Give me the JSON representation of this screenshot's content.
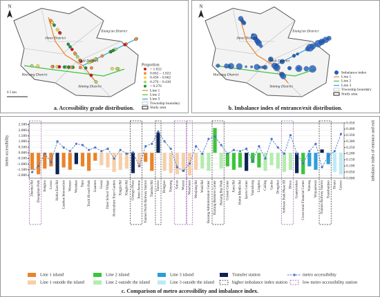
{
  "maps": [
    {
      "caption": "a. Accessibility grade distribution.",
      "north": "N",
      "scale": "0      5 km",
      "districts": [
        "Jimei District",
        "Xiang'an District",
        "Haicang District",
        "Huli District",
        "Siming District"
      ],
      "legend_title": "Proportion",
      "legend": [
        "> 1.022",
        "0.662 – 1.022",
        "0.430 – 0.662",
        "0.276 – 0.430",
        "< 0.276",
        "Line 1",
        "Line 2",
        "Line 3",
        "Township boundary",
        "Study area"
      ]
    },
    {
      "caption": "b. Imbalance index of entrance/exit distribution.",
      "north": "N",
      "districts": [
        "Jimei District",
        "Xiang'an District",
        "Haicang District",
        "Huli District",
        "Siming District"
      ],
      "legend": [
        "Imbalance index",
        "Line 1",
        "Line 2",
        "Line 3",
        "Township boundary",
        "Study area"
      ]
    }
  ],
  "chart_data": {
    "type": "bar_line",
    "caption": "c. Comparison of  metro accessibility and imbalance index.",
    "ylabel": "metro accessibility",
    "y2label": "imbalance index of entrance and exit",
    "categories": [
      "Zhenhai Rd",
      "Zhongshan Park",
      "Jiangtou",
      "Lvcuo",
      "Hubin East Rd",
      "Lianban Intersection",
      "Wenzao",
      "Wenshan",
      "Tapu",
      "Torch Hi-tech Park",
      "Guanren",
      "Gaoqi",
      "Jimei School Village",
      "Horticulture Expo Garden",
      "Xingjin Rd",
      "Xinglin Rd",
      "Chengyi Plaza",
      "Jimei Avenue",
      "Xiamen North Railway Station",
      "Tianshui Rd",
      "Tiancuo",
      "Dongyao",
      "Xinyang",
      "Xin'an",
      "Wucun",
      "Wenchuan",
      "Wenjiang Rd",
      "Wudi Rd",
      "Haicang Administration Center",
      "Haicang Business Center",
      "Haicang Bay Park",
      "Crystal Center",
      "Jiayu Rd",
      "Hubin Middle Rd",
      "Sports Center",
      "Yuanzhong",
      "Lingdou",
      "Cailing",
      "Gaolin",
      "Dongzhai",
      "Software Park Phase III",
      "Bruce",
      "Guanyinshan",
      "Cross-strait Financial Center",
      "Wutong",
      "Wuyuanwan",
      "Xiamen Railway Station",
      "Xiaoshanjiao",
      "Houxi",
      "Caicuo"
    ],
    "bar_groups": [
      {
        "name": "Line 1 island",
        "color": "#e8842a"
      },
      {
        "name": "Line 1 outside the island",
        "color": "#f6cfa8"
      },
      {
        "name": "Line 2 island",
        "color": "#3cc43c"
      },
      {
        "name": "Line 2 outside the island",
        "color": "#b5ecb0"
      },
      {
        "name": "Line 3 island",
        "color": "#2b9fd9"
      },
      {
        "name": "Line 3 outside the island",
        "color": "#bfeaf5"
      },
      {
        "name": "Transfer station",
        "color": "#0d2352"
      }
    ],
    "group_of": [
      0,
      0,
      0,
      0,
      6,
      0,
      0,
      6,
      0,
      0,
      0,
      1,
      1,
      1,
      1,
      1,
      6,
      1,
      0,
      0,
      6,
      1,
      1,
      1,
      1,
      1,
      1,
      3,
      3,
      2,
      3,
      2,
      2,
      2,
      6,
      2,
      2,
      3,
      3,
      3,
      3,
      3,
      6,
      2,
      4,
      4,
      6,
      4,
      5,
      5
    ],
    "series": [
      {
        "name": "metro accessibility bars",
        "axis": "y",
        "values": [
          -1.5,
          -1.9,
          -1.4,
          -1.2,
          -1.9,
          -1.3,
          -1.5,
          -1.0,
          -1.2,
          -1.6,
          -0.7,
          -1.1,
          -1.3,
          -1.7,
          -1.5,
          -1.4,
          -1.8,
          -1.3,
          -0.8,
          -1.6,
          1.8,
          -1.6,
          -1.8,
          -1.9,
          -1.7,
          -2.0,
          -1.5,
          -1.4,
          -1.6,
          2.2,
          -1.4,
          -1.2,
          -1.5,
          -1.3,
          -1.6,
          -0.9,
          -1.3,
          -1.6,
          -1.1,
          -1.4,
          -1.7,
          -1.5,
          -1.8,
          -1.9,
          -1.2,
          -1.5,
          0.3,
          -1.0,
          -1.7,
          -1.9
        ]
      },
      {
        "name": "metro accessibility",
        "axis": "y2",
        "color": "#4a74c9",
        "values": [
          0.05,
          0.1,
          0.2,
          0.13,
          0.3,
          0.25,
          0.22,
          0.28,
          0.27,
          0.23,
          0.25,
          0.22,
          0.24,
          0.16,
          0.23,
          0.2,
          0.21,
          0.1,
          0.26,
          0.28,
          0.38,
          0.3,
          0.24,
          0.09,
          0.06,
          0.12,
          0.26,
          0.2,
          0.32,
          0.34,
          0.27,
          0.2,
          0.23,
          0.22,
          0.24,
          0.14,
          0.26,
          0.16,
          0.32,
          0.25,
          0.2,
          0.35,
          0.2,
          0.12,
          0.22,
          0.28,
          0.09,
          0.18,
          0.22,
          0.36
        ]
      }
    ],
    "highlights": [
      {
        "name": "higher imbalance index station",
        "color": "#222",
        "spans": [
          [
            16,
            17
          ],
          [
            20,
            20
          ],
          [
            29,
            30
          ],
          [
            46,
            47
          ]
        ]
      },
      {
        "name": "low metro accessibility station",
        "color": "#8e4fb0",
        "spans": [
          [
            0,
            1
          ],
          [
            23,
            24
          ],
          [
            25,
            25
          ],
          [
            40,
            41
          ]
        ]
      }
    ],
    "ylim": [
      -2.25,
      2.65
    ],
    "yticks": [
      {
        "value": 2.5,
        "label": "2.500"
      },
      {
        "value": 2,
        "label": "2.000"
      },
      {
        "value": 1.5,
        "label": "1.500"
      },
      {
        "value": 1,
        "label": "1.000"
      },
      {
        "value": 0.5,
        "label": "0.500"
      },
      {
        "value": 0,
        "label": "0.000"
      },
      {
        "value": -0.5,
        "label": "-0.500"
      },
      {
        "value": -1,
        "label": "-1.000"
      },
      {
        "value": -1.5,
        "label": "-1.500"
      },
      {
        "value": -2,
        "label": "-2.000"
      }
    ],
    "y2lim": [
      0,
      0.45
    ],
    "y2ticks": [
      {
        "value": 0,
        "label": "0.000"
      },
      {
        "value": 0.05,
        "label": "0.050"
      },
      {
        "value": 0.1,
        "label": "0.100"
      },
      {
        "value": 0.15,
        "label": "0.150"
      },
      {
        "value": 0.2,
        "label": "0.200"
      },
      {
        "value": 0.25,
        "label": "0.250"
      },
      {
        "value": 0.3,
        "label": "0.300"
      },
      {
        "value": 0.35,
        "label": "0.350"
      },
      {
        "value": 0.4,
        "label": "0.400"
      },
      {
        "value": 0.45,
        "label": "0.450"
      }
    ]
  }
}
